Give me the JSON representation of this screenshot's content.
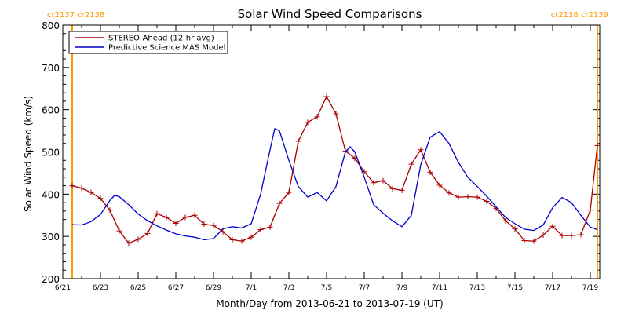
{
  "chart_data": {
    "type": "line",
    "title": "Solar Wind Speed Comparisons",
    "xlabel": "Month/Day from 2013-06-21 to 2013-07-19 (UT)",
    "ylabel": "Solar Wind Speed (km/s)",
    "xlim": [
      "2013-06-21",
      "2013-07-19 12:00"
    ],
    "ylim": [
      200,
      800
    ],
    "x_ticks": [
      {
        "date": "2013-06-21",
        "label": "6/21"
      },
      {
        "date": "2013-06-23",
        "label": "6/23"
      },
      {
        "date": "2013-06-25",
        "label": "6/25"
      },
      {
        "date": "2013-06-27",
        "label": "6/27"
      },
      {
        "date": "2013-06-29",
        "label": "6/29"
      },
      {
        "date": "2013-07-01",
        "label": "7/1"
      },
      {
        "date": "2013-07-03",
        "label": "7/3"
      },
      {
        "date": "2013-07-05",
        "label": "7/5"
      },
      {
        "date": "2013-07-07",
        "label": "7/7"
      },
      {
        "date": "2013-07-09",
        "label": "7/9"
      },
      {
        "date": "2013-07-11",
        "label": "7/11"
      },
      {
        "date": "2013-07-13",
        "label": "7/13"
      },
      {
        "date": "2013-07-15",
        "label": "7/15"
      },
      {
        "date": "2013-07-17",
        "label": "7/17"
      },
      {
        "date": "2013-07-19",
        "label": "7/19"
      }
    ],
    "y_ticks": [
      200,
      300,
      400,
      500,
      600,
      700,
      800
    ],
    "y_tick_labels": [
      "200",
      "300",
      "400",
      "500",
      "600",
      "700",
      "800"
    ],
    "legend_position": "top-left",
    "carrington_markers": [
      {
        "date": "2013-06-21 12:00",
        "label": "cr2137 cr2138",
        "color": "#ff9900",
        "label_align": "left"
      },
      {
        "date": "2013-07-19 09:00",
        "label": "cr2138 cr2139",
        "color": "#ff9900",
        "label_align": "right"
      }
    ],
    "series": [
      {
        "name": "STEREO-Ahead (12-hr avg)",
        "color": "#aa0000",
        "markers": true,
        "points": [
          [
            "2013-06-21 12:00",
            420
          ],
          [
            "2013-06-22 00:00",
            414
          ],
          [
            "2013-06-22 12:00",
            404
          ],
          [
            "2013-06-23 00:00",
            390
          ],
          [
            "2013-06-23 12:00",
            362
          ],
          [
            "2013-06-24 00:00",
            313
          ],
          [
            "2013-06-24 12:00",
            284
          ],
          [
            "2013-06-25 00:00",
            293
          ],
          [
            "2013-06-25 12:00",
            307
          ],
          [
            "2013-06-26 00:00",
            354
          ],
          [
            "2013-06-26 12:00",
            345
          ],
          [
            "2013-06-27 00:00",
            331
          ],
          [
            "2013-06-27 12:00",
            345
          ],
          [
            "2013-06-28 00:00",
            350
          ],
          [
            "2013-06-28 12:00",
            329
          ],
          [
            "2013-06-29 00:00",
            326
          ],
          [
            "2013-06-29 12:00",
            311
          ],
          [
            "2013-06-30 00:00",
            292
          ],
          [
            "2013-06-30 12:00",
            289
          ],
          [
            "2013-07-01 00:00",
            298
          ],
          [
            "2013-07-01 12:00",
            316
          ],
          [
            "2013-07-02 00:00",
            322
          ],
          [
            "2013-07-02 12:00",
            378
          ],
          [
            "2013-07-03 00:00",
            404
          ],
          [
            "2013-07-03 12:00",
            525
          ],
          [
            "2013-07-04 00:00",
            570
          ],
          [
            "2013-07-04 12:00",
            583
          ],
          [
            "2013-07-05 00:00",
            631
          ],
          [
            "2013-07-05 12:00",
            590
          ],
          [
            "2013-07-06 00:00",
            502
          ],
          [
            "2013-07-06 12:00",
            485
          ],
          [
            "2013-07-07 00:00",
            453
          ],
          [
            "2013-07-07 12:00",
            427
          ],
          [
            "2013-07-08 00:00",
            432
          ],
          [
            "2013-07-08 12:00",
            413
          ],
          [
            "2013-07-09 00:00",
            409
          ],
          [
            "2013-07-09 12:00",
            471
          ],
          [
            "2013-07-10 00:00",
            505
          ],
          [
            "2013-07-10 12:00",
            452
          ],
          [
            "2013-07-11 00:00",
            421
          ],
          [
            "2013-07-11 12:00",
            403
          ],
          [
            "2013-07-12 00:00",
            393
          ],
          [
            "2013-07-12 12:00",
            394
          ],
          [
            "2013-07-13 00:00",
            393
          ],
          [
            "2013-07-13 12:00",
            383
          ],
          [
            "2013-07-14 00:00",
            366
          ],
          [
            "2013-07-14 12:00",
            337
          ],
          [
            "2013-07-15 00:00",
            318
          ],
          [
            "2013-07-15 12:00",
            290
          ],
          [
            "2013-07-16 00:00",
            289
          ],
          [
            "2013-07-16 12:00",
            303
          ],
          [
            "2013-07-17 00:00",
            324
          ],
          [
            "2013-07-17 12:00",
            302
          ],
          [
            "2013-07-18 00:00",
            302
          ],
          [
            "2013-07-18 12:00",
            304
          ],
          [
            "2013-07-19 00:00",
            362
          ],
          [
            "2013-07-19 09:00",
            515
          ]
        ]
      },
      {
        "name": "Predictive Science MAS Model",
        "color": "#0000cc",
        "markers": false,
        "points": [
          [
            "2013-06-21 12:00",
            328
          ],
          [
            "2013-06-22 00:00",
            327
          ],
          [
            "2013-06-22 12:00",
            335
          ],
          [
            "2013-06-23 00:00",
            352
          ],
          [
            "2013-06-23 12:00",
            385
          ],
          [
            "2013-06-23 18:00",
            397
          ],
          [
            "2013-06-24 00:00",
            394
          ],
          [
            "2013-06-24 12:00",
            375
          ],
          [
            "2013-06-25 00:00",
            353
          ],
          [
            "2013-06-25 12:00",
            337
          ],
          [
            "2013-06-26 00:00",
            325
          ],
          [
            "2013-06-26 12:00",
            315
          ],
          [
            "2013-06-27 00:00",
            306
          ],
          [
            "2013-06-27 12:00",
            301
          ],
          [
            "2013-06-28 00:00",
            298
          ],
          [
            "2013-06-28 12:00",
            292
          ],
          [
            "2013-06-29 00:00",
            295
          ],
          [
            "2013-06-29 12:00",
            318
          ],
          [
            "2013-06-30 00:00",
            323
          ],
          [
            "2013-06-30 12:00",
            320
          ],
          [
            "2013-07-01 00:00",
            330
          ],
          [
            "2013-07-01 12:00",
            400
          ],
          [
            "2013-07-02 00:00",
            505
          ],
          [
            "2013-07-02 06:00",
            555
          ],
          [
            "2013-07-02 12:00",
            550
          ],
          [
            "2013-07-03 00:00",
            480
          ],
          [
            "2013-07-03 12:00",
            418
          ],
          [
            "2013-07-04 00:00",
            393
          ],
          [
            "2013-07-04 12:00",
            404
          ],
          [
            "2013-07-05 00:00",
            384
          ],
          [
            "2013-07-05 12:00",
            418
          ],
          [
            "2013-07-06 00:00",
            500
          ],
          [
            "2013-07-06 06:00",
            512
          ],
          [
            "2013-07-06 12:00",
            500
          ],
          [
            "2013-07-07 00:00",
            440
          ],
          [
            "2013-07-07 12:00",
            375
          ],
          [
            "2013-07-08 00:00",
            355
          ],
          [
            "2013-07-08 12:00",
            337
          ],
          [
            "2013-07-09 00:00",
            323
          ],
          [
            "2013-07-09 12:00",
            350
          ],
          [
            "2013-07-10 00:00",
            470
          ],
          [
            "2013-07-10 12:00",
            535
          ],
          [
            "2013-07-11 00:00",
            548
          ],
          [
            "2013-07-11 12:00",
            520
          ],
          [
            "2013-07-12 00:00",
            475
          ],
          [
            "2013-07-12 12:00",
            440
          ],
          [
            "2013-07-13 00:00",
            418
          ],
          [
            "2013-07-13 12:00",
            395
          ],
          [
            "2013-07-14 00:00",
            370
          ],
          [
            "2013-07-14 12:00",
            345
          ],
          [
            "2013-07-15 00:00",
            330
          ],
          [
            "2013-07-15 12:00",
            317
          ],
          [
            "2013-07-16 00:00",
            314
          ],
          [
            "2013-07-16 12:00",
            327
          ],
          [
            "2013-07-17 00:00",
            368
          ],
          [
            "2013-07-17 12:00",
            392
          ],
          [
            "2013-07-18 00:00",
            380
          ],
          [
            "2013-07-18 12:00",
            350
          ],
          [
            "2013-07-19 00:00",
            322
          ],
          [
            "2013-07-19 09:00",
            316
          ]
        ]
      }
    ]
  }
}
